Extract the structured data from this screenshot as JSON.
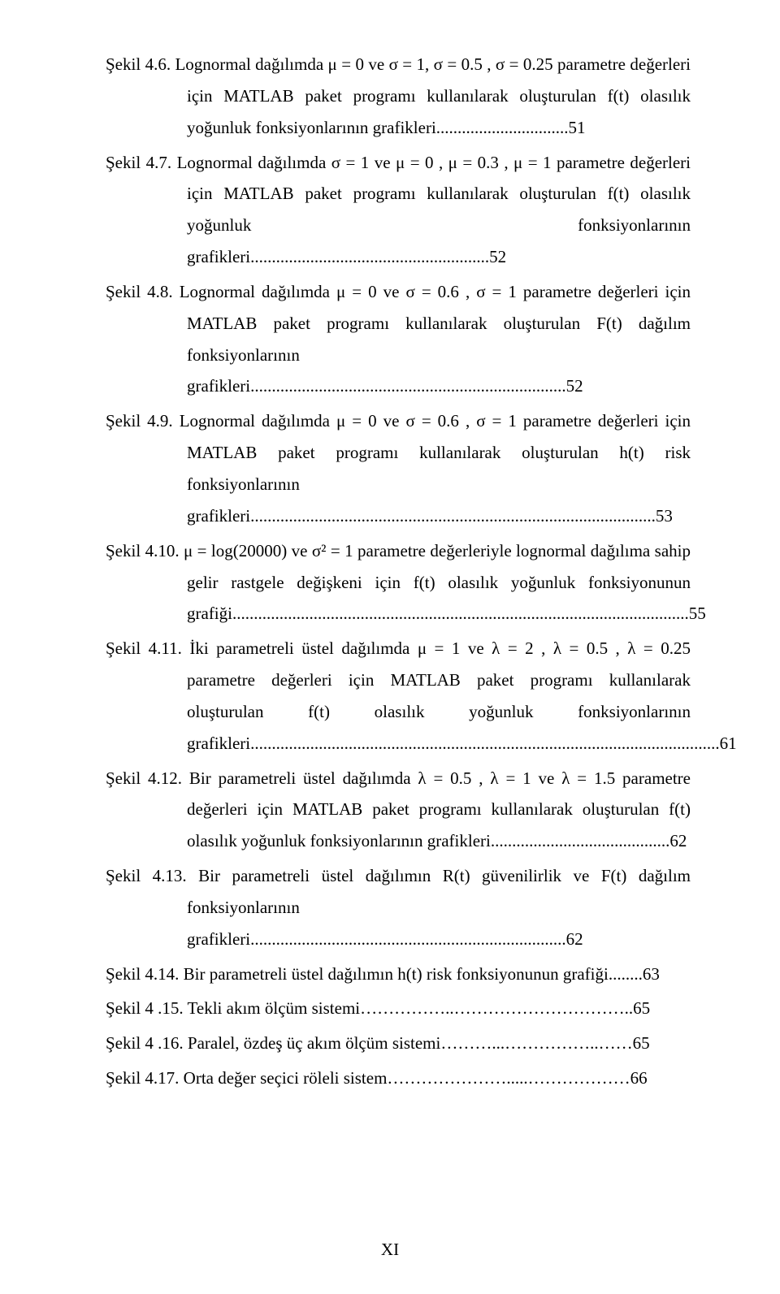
{
  "entries": [
    {
      "style": "hang",
      "text": "Şekil 4.6. Lognormal dağılımda μ = 0 ve σ = 1, σ = 0.5 , σ = 0.25 parametre değerleri için MATLAB paket programı kullanılarak oluşturulan f(t) olasılık yoğunluk fonksiyonlarının grafikleri...............................51"
    },
    {
      "style": "hang",
      "text": "Şekil 4.7. Lognormal dağılımda σ = 1 ve μ = 0 , μ = 0.3 , μ = 1 parametre değerleri için MATLAB paket programı kullanılarak oluşturulan f(t) olasılık yoğunluk fonksiyonlarının grafikleri........................................................52"
    },
    {
      "style": "hang",
      "text": "Şekil 4.8. Lognormal dağılımda μ = 0 ve σ = 0.6 , σ = 1 parametre değerleri için MATLAB paket programı kullanılarak oluşturulan F(t) dağılım fonksiyonlarının grafikleri..........................................................................52"
    },
    {
      "style": "hang",
      "text": "Şekil 4.9. Lognormal dağılımda μ = 0 ve σ = 0.6 , σ = 1 parametre değerleri için MATLAB paket programı kullanılarak oluşturulan h(t) risk fonksiyonlarının grafikleri...............................................................................................53"
    },
    {
      "style": "hang",
      "text": "Şekil 4.10. μ = log(20000) ve σ² = 1 parametre değerleriyle lognormal dağılıma sahip gelir rastgele değişkeni için f(t) olasılık yoğunluk fonksiyonunun grafiği...........................................................................................................55"
    },
    {
      "style": "hang",
      "text": "Şekil 4.11. İki parametreli üstel dağılımda μ = 1 ve λ = 2 , λ = 0.5 , λ = 0.25 parametre değerleri için MATLAB paket programı kullanılarak oluşturulan f(t) olasılık yoğunluk fonksiyonlarının grafikleri..............................................................................................................61"
    },
    {
      "style": "hang",
      "text": "Şekil 4.12. Bir parametreli üstel dağılımda λ = 0.5 , λ = 1 ve λ = 1.5 parametre değerleri için MATLAB paket programı kullanılarak oluşturulan f(t) olasılık yoğunluk fonksiyonlarının grafikleri..........................................62"
    },
    {
      "style": "hang",
      "text": "Şekil 4.13. Bir parametreli üstel dağılımın R(t) güvenilirlik ve F(t) dağılım fonksiyonlarının grafikleri..........................................................................62"
    },
    {
      "style": "simple",
      "text": "Şekil 4.14. Bir parametreli üstel dağılımın h(t) risk fonksiyonunun grafiği........63"
    },
    {
      "style": "simple",
      "text": "Şekil 4 .15. Tekli akım ölçüm sistemi……………..…………………………..65"
    },
    {
      "style": "simple",
      "text": "Şekil 4 .16. Paralel, özdeş üç akım ölçüm sistemi………...……………..……65"
    },
    {
      "style": "simple",
      "text": "Şekil 4.17. Orta değer seçici röleli sistem………………….....………………66"
    }
  ],
  "page_number": "XI"
}
